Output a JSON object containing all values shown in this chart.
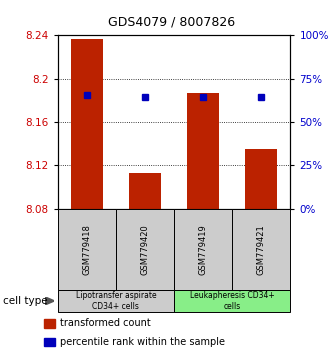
{
  "title": "GDS4079 / 8007826",
  "samples": [
    "GSM779418",
    "GSM779420",
    "GSM779419",
    "GSM779421"
  ],
  "bar_values": [
    8.237,
    8.113,
    8.187,
    8.135
  ],
  "bar_base": 8.08,
  "percentile_values": [
    8.185,
    8.183,
    8.183,
    8.183
  ],
  "ylim": [
    8.08,
    8.24
  ],
  "yticks_left": [
    8.08,
    8.12,
    8.16,
    8.2,
    8.24
  ],
  "yticks_right": [
    0,
    25,
    50,
    75,
    100
  ],
  "bar_color": "#bb2200",
  "percentile_color": "#0000bb",
  "cell_type_groups": [
    {
      "label": "Lipotransfer aspirate\nCD34+ cells",
      "span": [
        0,
        2
      ],
      "color": "#cccccc"
    },
    {
      "label": "Leukapheresis CD34+\ncells",
      "span": [
        2,
        4
      ],
      "color": "#88ee88"
    }
  ],
  "legend_items": [
    {
      "color": "#bb2200",
      "label": "transformed count"
    },
    {
      "color": "#0000bb",
      "label": "percentile rank within the sample"
    }
  ],
  "cell_type_label": "cell type",
  "bar_width": 0.55,
  "tick_label_color_left": "#cc0000",
  "tick_label_color_right": "#0000cc",
  "title_fontsize": 9,
  "tick_fontsize": 7.5,
  "sample_fontsize": 6,
  "celltype_fontsize": 5.5,
  "legend_fontsize": 7
}
